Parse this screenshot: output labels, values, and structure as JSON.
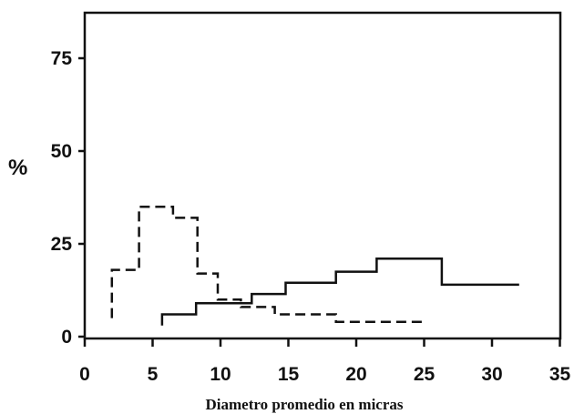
{
  "chart_data": {
    "type": "line",
    "step": true,
    "title": "",
    "xlabel": "Diametro promedio en micras",
    "ylabel": "%",
    "xlim": [
      0,
      35
    ],
    "ylim": [
      0,
      85
    ],
    "x_ticks": [
      "0",
      "5",
      "10",
      "15",
      "20",
      "25",
      "30",
      "35"
    ],
    "y_ticks": [
      "0",
      "25",
      "50",
      "75"
    ],
    "grid": false,
    "series": [
      {
        "style": "dashed",
        "color": "#111111",
        "points": [
          [
            2,
            5
          ],
          [
            2,
            18
          ],
          [
            4,
            18
          ],
          [
            4,
            35
          ],
          [
            6.5,
            35
          ],
          [
            6.5,
            32
          ],
          [
            8.3,
            32
          ],
          [
            8.3,
            17
          ],
          [
            9.8,
            17
          ],
          [
            9.8,
            10
          ],
          [
            11.5,
            10
          ],
          [
            11.5,
            8
          ],
          [
            14,
            8
          ],
          [
            14,
            6
          ],
          [
            18.5,
            6
          ],
          [
            18.5,
            4
          ],
          [
            25,
            4
          ]
        ]
      },
      {
        "style": "solid",
        "color": "#111111",
        "points": [
          [
            5.7,
            3
          ],
          [
            5.7,
            6
          ],
          [
            8.2,
            6
          ],
          [
            8.2,
            9
          ],
          [
            12.3,
            9
          ],
          [
            12.3,
            11.5
          ],
          [
            14.8,
            11.5
          ],
          [
            14.8,
            14.5
          ],
          [
            18.5,
            14.5
          ],
          [
            18.5,
            17.5
          ],
          [
            21.5,
            17.5
          ],
          [
            21.5,
            21
          ],
          [
            26.3,
            21
          ],
          [
            26.3,
            14
          ],
          [
            32,
            14
          ]
        ]
      }
    ]
  }
}
